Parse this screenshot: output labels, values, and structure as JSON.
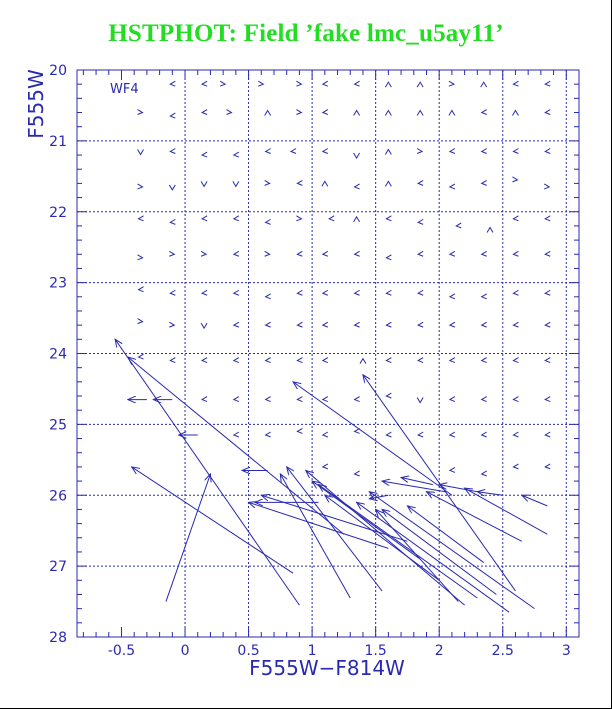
{
  "title": "HSTPHOT: Field ’fake lmc_u5ay11’",
  "colors": {
    "title": "#22dd22",
    "plot": "#2a2ab0"
  },
  "chart_data": {
    "type": "vector-field",
    "panel_label": "WF4",
    "xlabel": "F555W−F814W",
    "ylabel": "F555W",
    "xlim": [
      -0.85,
      3.1
    ],
    "ylim": [
      28,
      20
    ],
    "y_inverted": true,
    "xticks": [
      -0.5,
      0,
      0.5,
      1,
      1.5,
      2,
      2.5,
      3
    ],
    "xtick_labels": [
      "-0.5",
      "0",
      "0.5",
      "1",
      "1.5",
      "2",
      "2.5",
      "3"
    ],
    "yticks": [
      20,
      21,
      22,
      23,
      24,
      25,
      26,
      27,
      28
    ],
    "ytick_labels": [
      "20",
      "21",
      "22",
      "23",
      "24",
      "25",
      "26",
      "27",
      "28"
    ],
    "grid_x": [
      0,
      0.5,
      1,
      1.5,
      2,
      2.5,
      3
    ],
    "grid_y": [
      21,
      22,
      23,
      24,
      25,
      26,
      27
    ],
    "grid": "dotted",
    "small_markers": [
      {
        "x": -0.1,
        "y": 20.2,
        "d": "L"
      },
      {
        "x": 0.15,
        "y": 20.2,
        "d": "L"
      },
      {
        "x": 0.3,
        "y": 20.2,
        "d": "R"
      },
      {
        "x": 0.6,
        "y": 20.2,
        "d": "R"
      },
      {
        "x": 0.9,
        "y": 20.2,
        "d": "R"
      },
      {
        "x": 1.1,
        "y": 20.2,
        "d": "L"
      },
      {
        "x": 1.35,
        "y": 20.2,
        "d": "L"
      },
      {
        "x": 1.6,
        "y": 20.2,
        "d": "U"
      },
      {
        "x": 1.85,
        "y": 20.2,
        "d": "U"
      },
      {
        "x": 2.1,
        "y": 20.2,
        "d": "R"
      },
      {
        "x": 2.35,
        "y": 20.2,
        "d": "U"
      },
      {
        "x": 2.6,
        "y": 20.2,
        "d": "L"
      },
      {
        "x": 2.85,
        "y": 20.2,
        "d": "L"
      },
      {
        "x": -0.35,
        "y": 20.6,
        "d": "R"
      },
      {
        "x": -0.1,
        "y": 20.65,
        "d": "L"
      },
      {
        "x": 0.15,
        "y": 20.6,
        "d": "L"
      },
      {
        "x": 0.35,
        "y": 20.6,
        "d": "R"
      },
      {
        "x": 0.65,
        "y": 20.6,
        "d": "U"
      },
      {
        "x": 0.9,
        "y": 20.6,
        "d": "R"
      },
      {
        "x": 1.1,
        "y": 20.6,
        "d": "L"
      },
      {
        "x": 1.35,
        "y": 20.6,
        "d": "U"
      },
      {
        "x": 1.6,
        "y": 20.6,
        "d": "U"
      },
      {
        "x": 1.85,
        "y": 20.6,
        "d": "U"
      },
      {
        "x": 2.1,
        "y": 20.6,
        "d": "U"
      },
      {
        "x": 2.35,
        "y": 20.6,
        "d": "L"
      },
      {
        "x": 2.6,
        "y": 20.6,
        "d": "U"
      },
      {
        "x": 2.85,
        "y": 20.6,
        "d": "L"
      },
      {
        "x": -0.35,
        "y": 21.15,
        "d": "D"
      },
      {
        "x": -0.1,
        "y": 21.15,
        "d": "L"
      },
      {
        "x": 0.15,
        "y": 21.2,
        "d": "L"
      },
      {
        "x": 0.4,
        "y": 21.2,
        "d": "L"
      },
      {
        "x": 0.65,
        "y": 21.15,
        "d": "L"
      },
      {
        "x": 0.85,
        "y": 21.15,
        "d": "L"
      },
      {
        "x": 1.1,
        "y": 21.15,
        "d": "L"
      },
      {
        "x": 1.35,
        "y": 21.2,
        "d": "D"
      },
      {
        "x": 1.6,
        "y": 21.15,
        "d": "U"
      },
      {
        "x": 1.85,
        "y": 21.15,
        "d": "R"
      },
      {
        "x": 2.1,
        "y": 21.15,
        "d": "L"
      },
      {
        "x": 2.35,
        "y": 21.15,
        "d": "L"
      },
      {
        "x": 2.6,
        "y": 21.15,
        "d": "L"
      },
      {
        "x": 2.85,
        "y": 21.15,
        "d": "L"
      },
      {
        "x": -0.35,
        "y": 21.65,
        "d": "R"
      },
      {
        "x": -0.1,
        "y": 21.65,
        "d": "D"
      },
      {
        "x": 0.15,
        "y": 21.6,
        "d": "D"
      },
      {
        "x": 0.4,
        "y": 21.6,
        "d": "D"
      },
      {
        "x": 0.65,
        "y": 21.6,
        "d": "R"
      },
      {
        "x": 0.9,
        "y": 21.6,
        "d": "L"
      },
      {
        "x": 1.1,
        "y": 21.6,
        "d": "U"
      },
      {
        "x": 1.35,
        "y": 21.65,
        "d": "L"
      },
      {
        "x": 1.6,
        "y": 21.6,
        "d": "U"
      },
      {
        "x": 1.85,
        "y": 21.6,
        "d": "L"
      },
      {
        "x": 2.1,
        "y": 21.65,
        "d": "L"
      },
      {
        "x": 2.35,
        "y": 21.6,
        "d": "L"
      },
      {
        "x": 2.6,
        "y": 21.55,
        "d": "R"
      },
      {
        "x": 2.85,
        "y": 21.65,
        "d": "R"
      },
      {
        "x": -0.35,
        "y": 22.1,
        "d": "L"
      },
      {
        "x": -0.1,
        "y": 22.15,
        "d": "L"
      },
      {
        "x": 0.15,
        "y": 22.1,
        "d": "L"
      },
      {
        "x": 0.4,
        "y": 22.1,
        "d": "L"
      },
      {
        "x": 0.65,
        "y": 22.15,
        "d": "L"
      },
      {
        "x": 0.9,
        "y": 22.1,
        "d": "R"
      },
      {
        "x": 1.15,
        "y": 22.1,
        "d": "L"
      },
      {
        "x": 1.35,
        "y": 22.1,
        "d": "U"
      },
      {
        "x": 1.6,
        "y": 22.1,
        "d": "L"
      },
      {
        "x": 1.85,
        "y": 22.15,
        "d": "L"
      },
      {
        "x": 2.15,
        "y": 22.2,
        "d": "L"
      },
      {
        "x": 2.4,
        "y": 22.25,
        "d": "U"
      },
      {
        "x": 2.6,
        "y": 22.1,
        "d": "L"
      },
      {
        "x": 2.85,
        "y": 22.1,
        "d": "L"
      },
      {
        "x": -0.35,
        "y": 22.65,
        "d": "R"
      },
      {
        "x": -0.1,
        "y": 22.6,
        "d": "R"
      },
      {
        "x": 0.15,
        "y": 22.6,
        "d": "R"
      },
      {
        "x": 0.4,
        "y": 22.6,
        "d": "L"
      },
      {
        "x": 0.65,
        "y": 22.6,
        "d": "R"
      },
      {
        "x": 0.9,
        "y": 22.6,
        "d": "L"
      },
      {
        "x": 1.1,
        "y": 22.6,
        "d": "L"
      },
      {
        "x": 1.35,
        "y": 22.6,
        "d": "L"
      },
      {
        "x": 1.6,
        "y": 22.65,
        "d": "L"
      },
      {
        "x": 1.85,
        "y": 22.6,
        "d": "L"
      },
      {
        "x": 2.1,
        "y": 22.6,
        "d": "L"
      },
      {
        "x": 2.35,
        "y": 22.6,
        "d": "L"
      },
      {
        "x": 2.6,
        "y": 22.6,
        "d": "L"
      },
      {
        "x": 2.85,
        "y": 22.6,
        "d": "L"
      },
      {
        "x": -0.35,
        "y": 23.1,
        "d": "L"
      },
      {
        "x": -0.1,
        "y": 23.15,
        "d": "L"
      },
      {
        "x": 0.15,
        "y": 23.15,
        "d": "L"
      },
      {
        "x": 0.4,
        "y": 23.15,
        "d": "L"
      },
      {
        "x": 0.65,
        "y": 23.2,
        "d": "L"
      },
      {
        "x": 0.9,
        "y": 23.15,
        "d": "L"
      },
      {
        "x": 1.1,
        "y": 23.15,
        "d": "L"
      },
      {
        "x": 1.35,
        "y": 23.15,
        "d": "L"
      },
      {
        "x": 1.6,
        "y": 23.15,
        "d": "L"
      },
      {
        "x": 1.85,
        "y": 23.15,
        "d": "L"
      },
      {
        "x": 2.1,
        "y": 23.2,
        "d": "L"
      },
      {
        "x": 2.35,
        "y": 23.2,
        "d": "L"
      },
      {
        "x": 2.6,
        "y": 23.15,
        "d": "L"
      },
      {
        "x": 2.85,
        "y": 23.15,
        "d": "L"
      },
      {
        "x": -0.35,
        "y": 23.55,
        "d": "R"
      },
      {
        "x": -0.1,
        "y": 23.6,
        "d": "R"
      },
      {
        "x": 0.15,
        "y": 23.6,
        "d": "D"
      },
      {
        "x": 0.4,
        "y": 23.6,
        "d": "L"
      },
      {
        "x": 0.65,
        "y": 23.6,
        "d": "L"
      },
      {
        "x": 0.9,
        "y": 23.6,
        "d": "L"
      },
      {
        "x": 1.1,
        "y": 23.6,
        "d": "L"
      },
      {
        "x": 1.35,
        "y": 23.6,
        "d": "L"
      },
      {
        "x": 1.6,
        "y": 23.6,
        "d": "L"
      },
      {
        "x": 1.85,
        "y": 23.6,
        "d": "L"
      },
      {
        "x": 2.1,
        "y": 23.6,
        "d": "L"
      },
      {
        "x": 2.35,
        "y": 23.6,
        "d": "L"
      },
      {
        "x": 2.6,
        "y": 23.6,
        "d": "L"
      },
      {
        "x": 2.85,
        "y": 23.6,
        "d": "L"
      },
      {
        "x": -0.35,
        "y": 24.05,
        "d": "L"
      },
      {
        "x": -0.1,
        "y": 24.1,
        "d": "L"
      },
      {
        "x": 0.15,
        "y": 24.1,
        "d": "L"
      },
      {
        "x": 0.4,
        "y": 24.1,
        "d": "L"
      },
      {
        "x": 0.65,
        "y": 24.1,
        "d": "L"
      },
      {
        "x": 0.9,
        "y": 24.1,
        "d": "L"
      },
      {
        "x": 1.1,
        "y": 24.1,
        "d": "L"
      },
      {
        "x": 1.4,
        "y": 24.1,
        "d": "U"
      },
      {
        "x": 1.6,
        "y": 24.1,
        "d": "L"
      },
      {
        "x": 1.85,
        "y": 24.1,
        "d": "L"
      },
      {
        "x": 2.1,
        "y": 24.1,
        "d": "L"
      },
      {
        "x": 2.35,
        "y": 24.1,
        "d": "L"
      },
      {
        "x": 2.6,
        "y": 24.1,
        "d": "L"
      },
      {
        "x": 2.85,
        "y": 24.1,
        "d": "L"
      },
      {
        "x": 0.15,
        "y": 24.65,
        "d": "L"
      },
      {
        "x": 0.4,
        "y": 24.65,
        "d": "L"
      },
      {
        "x": 0.65,
        "y": 24.65,
        "d": "L"
      },
      {
        "x": 0.9,
        "y": 24.65,
        "d": "L"
      },
      {
        "x": 1.1,
        "y": 24.65,
        "d": "L"
      },
      {
        "x": 1.35,
        "y": 24.65,
        "d": "L"
      },
      {
        "x": 1.6,
        "y": 24.6,
        "d": "L"
      },
      {
        "x": 1.85,
        "y": 24.65,
        "d": "D"
      },
      {
        "x": 2.1,
        "y": 24.65,
        "d": "L"
      },
      {
        "x": 2.35,
        "y": 24.65,
        "d": "L"
      },
      {
        "x": 2.6,
        "y": 24.65,
        "d": "L"
      },
      {
        "x": 2.85,
        "y": 24.65,
        "d": "L"
      },
      {
        "x": 0.4,
        "y": 25.15,
        "d": "L"
      },
      {
        "x": 0.65,
        "y": 25.15,
        "d": "L"
      },
      {
        "x": 0.9,
        "y": 25.1,
        "d": "L"
      },
      {
        "x": 1.1,
        "y": 25.15,
        "d": "L"
      },
      {
        "x": 1.35,
        "y": 25.1,
        "d": "L"
      },
      {
        "x": 1.6,
        "y": 25.15,
        "d": "L"
      },
      {
        "x": 1.85,
        "y": 25.15,
        "d": "L"
      },
      {
        "x": 2.1,
        "y": 25.15,
        "d": "L"
      },
      {
        "x": 2.35,
        "y": 25.15,
        "d": "L"
      },
      {
        "x": 2.6,
        "y": 25.15,
        "d": "L"
      },
      {
        "x": 2.85,
        "y": 25.15,
        "d": "L"
      },
      {
        "x": 1.1,
        "y": 25.6,
        "d": "L"
      },
      {
        "x": 1.35,
        "y": 25.7,
        "d": "L"
      },
      {
        "x": 2.1,
        "y": 25.65,
        "d": "L"
      },
      {
        "x": 2.35,
        "y": 25.7,
        "d": "L"
      },
      {
        "x": 2.6,
        "y": 25.6,
        "d": "L"
      },
      {
        "x": 2.85,
        "y": 25.6,
        "d": "L"
      }
    ],
    "arrows": [
      {
        "x0": 0.9,
        "y0": 27.55,
        "x1": -0.55,
        "y1": 23.8
      },
      {
        "x0": 1.25,
        "y0": 26.55,
        "x1": -0.45,
        "y1": 24.05
      },
      {
        "x0": 0.85,
        "y0": 27.1,
        "x1": -0.42,
        "y1": 25.6
      },
      {
        "x0": -0.15,
        "y0": 27.5,
        "x1": 0.2,
        "y1": 25.7
      },
      {
        "x0": -0.3,
        "y0": 24.65,
        "x1": -0.45,
        "y1": 24.65
      },
      {
        "x0": -0.1,
        "y0": 24.65,
        "x1": -0.25,
        "y1": 24.65
      },
      {
        "x0": 0.1,
        "y0": 25.15,
        "x1": -0.05,
        "y1": 25.15
      },
      {
        "x0": 0.65,
        "y0": 25.65,
        "x1": 0.45,
        "y1": 25.65
      },
      {
        "x0": 1.3,
        "y0": 27.45,
        "x1": 0.75,
        "y1": 25.7
      },
      {
        "x0": 1.55,
        "y0": 27.35,
        "x1": 0.8,
        "y1": 25.6
      },
      {
        "x0": 1.75,
        "y0": 26.65,
        "x1": 0.6,
        "y1": 26.0
      },
      {
        "x0": 1.6,
        "y0": 26.75,
        "x1": 0.5,
        "y1": 26.1
      },
      {
        "x0": 2.2,
        "y0": 27.55,
        "x1": 0.95,
        "y1": 25.65
      },
      {
        "x0": 2.3,
        "y0": 27.45,
        "x1": 1.05,
        "y1": 25.85
      },
      {
        "x0": 2.0,
        "y0": 27.2,
        "x1": 1.1,
        "y1": 26.0
      },
      {
        "x0": 1.85,
        "y0": 26.9,
        "x1": 1.0,
        "y1": 25.8
      },
      {
        "x0": 2.55,
        "y0": 27.65,
        "x1": 1.35,
        "y1": 26.1
      },
      {
        "x0": 2.75,
        "y0": 27.6,
        "x1": 1.45,
        "y1": 25.95
      },
      {
        "x0": 2.15,
        "y0": 27.5,
        "x1": 1.5,
        "y1": 26.2
      },
      {
        "x0": 2.45,
        "y0": 27.4,
        "x1": 1.55,
        "y1": 26.2
      },
      {
        "x0": 2.65,
        "y0": 26.65,
        "x1": 1.9,
        "y1": 25.95
      },
      {
        "x0": 2.35,
        "y0": 26.95,
        "x1": 1.75,
        "y1": 26.15
      },
      {
        "x0": 1.95,
        "y0": 25.85,
        "x1": 1.7,
        "y1": 25.75
      },
      {
        "x0": 2.05,
        "y0": 25.95,
        "x1": 1.55,
        "y1": 25.8
      },
      {
        "x0": 2.6,
        "y0": 27.35,
        "x1": 1.4,
        "y1": 24.3
      },
      {
        "x0": 2.1,
        "y0": 26.0,
        "x1": 0.85,
        "y1": 24.4
      },
      {
        "x0": 2.3,
        "y0": 25.95,
        "x1": 2.0,
        "y1": 25.85
      },
      {
        "x0": 2.85,
        "y0": 26.55,
        "x1": 2.2,
        "y1": 25.9
      },
      {
        "x0": 2.85,
        "y0": 26.15,
        "x1": 2.65,
        "y1": 26.0
      },
      {
        "x0": 2.5,
        "y0": 26.0,
        "x1": 2.3,
        "y1": 25.95
      },
      {
        "x0": 1.6,
        "y0": 26.0,
        "x1": 1.45,
        "y1": 26.05
      },
      {
        "x0": 1.05,
        "y0": 26.1,
        "x1": 0.55,
        "y1": 26.1
      }
    ]
  }
}
